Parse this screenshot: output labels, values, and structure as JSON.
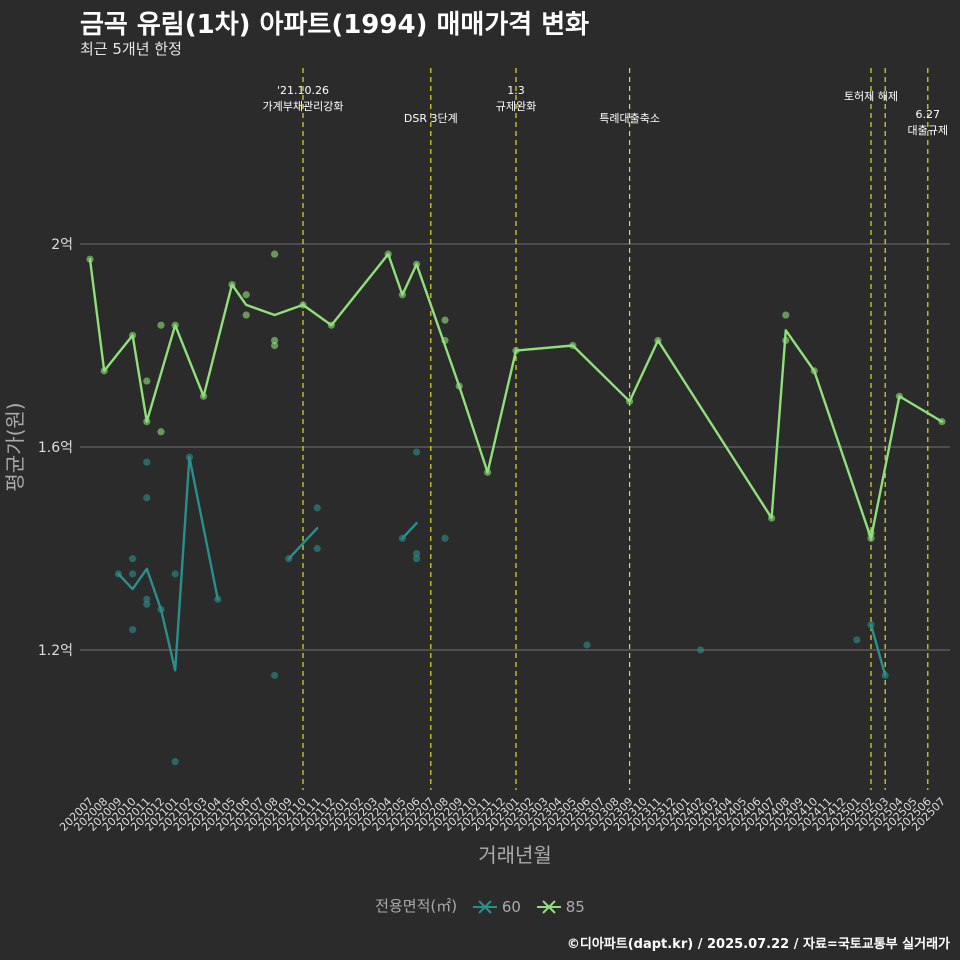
{
  "header": {
    "title": "금곡 유림(1차) 아파트(1994) 매매가격 변화",
    "subtitle": "최근 5개년 한정"
  },
  "caption": "©디아파트(dapt.kr) / 2025.07.22 / 자료=국토교통부 실거래가",
  "legend": {
    "title": "전용면적(㎡)",
    "items": [
      {
        "label": "60",
        "color": "#2a8f8c"
      },
      {
        "label": "85",
        "color": "#8fe07a"
      }
    ]
  },
  "chart_data": {
    "type": "line",
    "xlabel": "거래년월",
    "ylabel": "평균가(원)",
    "categories": [
      "202007",
      "202008",
      "202009",
      "202010",
      "202011",
      "202012",
      "202101",
      "202102",
      "202103",
      "202104",
      "202105",
      "202106",
      "202107",
      "202108",
      "202109",
      "202110",
      "202111",
      "202112",
      "202201",
      "202202",
      "202203",
      "202204",
      "202205",
      "202206",
      "202207",
      "202208",
      "202209",
      "202210",
      "202211",
      "202212",
      "202301",
      "202302",
      "202303",
      "202304",
      "202305",
      "202306",
      "202307",
      "202308",
      "202309",
      "202310",
      "202311",
      "202312",
      "202401",
      "202402",
      "202403",
      "202404",
      "202405",
      "202406",
      "202407",
      "202408",
      "202409",
      "202410",
      "202411",
      "202412",
      "202501",
      "202502",
      "202503",
      "202504",
      "202505",
      "202506",
      "202507"
    ],
    "yticks": [
      {
        "value": 1.2,
        "label": "1.2억"
      },
      {
        "value": 1.6,
        "label": "1.6억"
      },
      {
        "value": 2.0,
        "label": "2억"
      }
    ],
    "ylim": [
      0.97,
      2.35
    ],
    "grid": true,
    "legend_position": "bottom",
    "series": [
      {
        "name": "60",
        "color": "#2a8f8c",
        "line_segments": [
          [
            [
              "202009",
              1.35
            ],
            [
              "202010",
              1.32
            ],
            [
              "202011",
              1.36
            ],
            [
              "202012",
              1.28
            ],
            [
              "202101",
              1.16
            ],
            [
              "202102",
              1.58
            ],
            [
              "202104",
              1.3
            ]
          ],
          [
            [
              "202109",
              1.38
            ],
            [
              "202111",
              1.44
            ]
          ],
          [
            [
              "202205",
              1.42
            ],
            [
              "202206",
              1.45
            ]
          ],
          [
            [
              "202502",
              1.25
            ],
            [
              "202503",
              1.15
            ]
          ]
        ],
        "points": [
          [
            "202009",
            1.35
          ],
          [
            "202010",
            1.38
          ],
          [
            "202010",
            1.35
          ],
          [
            "202010",
            1.24
          ],
          [
            "202011",
            1.57
          ],
          [
            "202011",
            1.5
          ],
          [
            "202011",
            1.3
          ],
          [
            "202011",
            1.29
          ],
          [
            "202012",
            1.28
          ],
          [
            "202101",
            1.35
          ],
          [
            "202101",
            0.98
          ],
          [
            "202102",
            1.58
          ],
          [
            "202104",
            1.3
          ],
          [
            "202108",
            1.15
          ],
          [
            "202109",
            1.38
          ],
          [
            "202111",
            1.48
          ],
          [
            "202111",
            1.4
          ],
          [
            "202205",
            1.42
          ],
          [
            "202206",
            1.59
          ],
          [
            "202206",
            1.39
          ],
          [
            "202206",
            1.38
          ],
          [
            "202208",
            1.42
          ],
          [
            "202306",
            1.21
          ],
          [
            "202402",
            1.2
          ],
          [
            "202501",
            1.22
          ],
          [
            "202502",
            1.25
          ],
          [
            "202503",
            1.15
          ]
        ]
      },
      {
        "name": "85",
        "color": "#8fe07a",
        "line_segments": [
          [
            [
              "202007",
              1.97
            ],
            [
              "202008",
              1.75
            ],
            [
              "202010",
              1.82
            ],
            [
              "202011",
              1.65
            ],
            [
              "202101",
              1.84
            ],
            [
              "202103",
              1.7
            ],
            [
              "202105",
              1.92
            ],
            [
              "202106",
              1.88
            ],
            [
              "202108",
              1.86
            ],
            [
              "202110",
              1.88
            ],
            [
              "202112",
              1.84
            ],
            [
              "202204",
              1.98
            ],
            [
              "202205",
              1.9
            ],
            [
              "202206",
              1.96
            ],
            [
              "202208",
              1.8
            ],
            [
              "202209",
              1.72
            ],
            [
              "202211",
              1.55
            ],
            [
              "202301",
              1.79
            ],
            [
              "202305",
              1.8
            ],
            [
              "202309",
              1.69
            ],
            [
              "202311",
              1.81
            ],
            [
              "202407",
              1.46
            ],
            [
              "202408",
              1.83
            ],
            [
              "202410",
              1.75
            ],
            [
              "202502",
              1.42
            ],
            [
              "202504",
              1.7
            ],
            [
              "202507",
              1.65
            ]
          ]
        ],
        "points": [
          [
            "202007",
            1.97
          ],
          [
            "202008",
            1.75
          ],
          [
            "202010",
            1.82
          ],
          [
            "202011",
            1.73
          ],
          [
            "202011",
            1.65
          ],
          [
            "202012",
            1.84
          ],
          [
            "202012",
            1.63
          ],
          [
            "202101",
            1.84
          ],
          [
            "202103",
            1.7
          ],
          [
            "202105",
            1.92
          ],
          [
            "202106",
            1.9
          ],
          [
            "202106",
            1.86
          ],
          [
            "202108",
            1.98
          ],
          [
            "202108",
            1.81
          ],
          [
            "202108",
            1.8
          ],
          [
            "202110",
            1.88
          ],
          [
            "202112",
            1.84
          ],
          [
            "202204",
            1.98
          ],
          [
            "202205",
            1.9
          ],
          [
            "202206",
            1.96
          ],
          [
            "202208",
            1.85
          ],
          [
            "202208",
            1.81
          ],
          [
            "202209",
            1.72
          ],
          [
            "202211",
            1.55
          ],
          [
            "202301",
            1.79
          ],
          [
            "202305",
            1.8
          ],
          [
            "202309",
            1.69
          ],
          [
            "202311",
            1.81
          ],
          [
            "202407",
            1.46
          ],
          [
            "202408",
            1.86
          ],
          [
            "202408",
            1.81
          ],
          [
            "202410",
            1.75
          ],
          [
            "202502",
            1.42
          ],
          [
            "202502",
            1.43
          ],
          [
            "202504",
            1.7
          ],
          [
            "202507",
            1.65
          ]
        ]
      }
    ],
    "annotations": [
      {
        "x": "202110",
        "lines": [
          "'21.10.26",
          "가계부채관리강화"
        ],
        "row": 0
      },
      {
        "x": "202207",
        "lines": [
          "DSR 3단계"
        ],
        "row": 2
      },
      {
        "x": "202301",
        "lines": [
          "1.3",
          "규제완화"
        ],
        "row": 0
      },
      {
        "x": "202309",
        "lines": [
          "특례대출축소"
        ],
        "row": 2
      },
      {
        "x": "202502",
        "lines": [
          "토허제 해제"
        ],
        "row": 1
      },
      {
        "x": "202503",
        "lines": [],
        "row": 0
      },
      {
        "x": "202506",
        "lines": [
          "6.27",
          "대출규제"
        ],
        "row": 2
      }
    ]
  }
}
